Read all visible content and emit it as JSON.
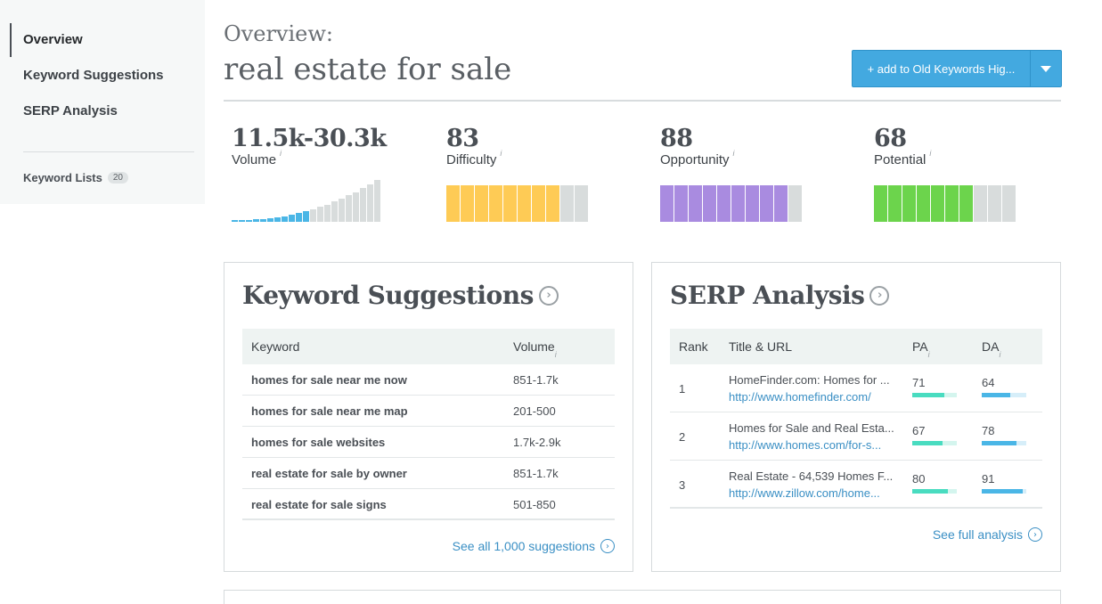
{
  "sidebar": {
    "items": [
      {
        "label": "Overview"
      },
      {
        "label": "Keyword Suggestions"
      },
      {
        "label": "SERP Analysis"
      }
    ],
    "keyword_lists": {
      "label": "Keyword Lists",
      "count": "20"
    }
  },
  "header": {
    "overview_label": "Overview:",
    "keyword": "real estate for sale",
    "add_button": "+ add to Old Keywords Hig..."
  },
  "metrics": [
    {
      "value": "11.5k-30.3k",
      "label": "Volume",
      "info": "i",
      "color_active": "#4ab6e6",
      "color_inactive": "#d8dcdc"
    },
    {
      "value": "83",
      "label": "Difficulty",
      "info": "i",
      "level": 0.83,
      "color_active": "#fecb55",
      "color_inactive": "#d8dcdc"
    },
    {
      "value": "88",
      "label": "Opportunity",
      "info": "i",
      "level": 0.88,
      "color_active": "#a98be0",
      "color_inactive": "#d8dcdc"
    },
    {
      "value": "68",
      "label": "Potential",
      "info": "i",
      "level": 0.68,
      "color_active": "#6cd44c",
      "color_inactive": "#d8dcdc"
    }
  ],
  "keyword_suggestions": {
    "title": "Keyword Suggestions",
    "col_keyword": "Keyword",
    "col_volume": "Volume",
    "info": "i",
    "rows": [
      {
        "keyword": "homes for sale near me now",
        "volume": "851-1.7k"
      },
      {
        "keyword": "homes for sale near me map",
        "volume": "201-500"
      },
      {
        "keyword": "homes for sale websites",
        "volume": "1.7k-2.9k"
      },
      {
        "keyword": "real estate for sale by owner",
        "volume": "851-1.7k"
      },
      {
        "keyword": "real estate for sale signs",
        "volume": "501-850"
      }
    ],
    "see_all": "See all 1,000 suggestions"
  },
  "serp_analysis": {
    "title": "SERP Analysis",
    "col_rank": "Rank",
    "col_title": "Title & URL",
    "col_pa": "PA",
    "col_da": "DA",
    "info": "i",
    "pa_color": "#49dcc0",
    "da_color": "#4ab6e6",
    "rows": [
      {
        "rank": "1",
        "title": "HomeFinder.com: Homes for ...",
        "url": "http://www.homefinder.com/",
        "pa": 71,
        "da": 64
      },
      {
        "rank": "2",
        "title": "Homes for Sale and Real Esta...",
        "url": "http://www.homes.com/for-s...",
        "pa": 67,
        "da": 78
      },
      {
        "rank": "3",
        "title": "Real Estate - 64,539 Homes F...",
        "url": "http://www.zillow.com/home...",
        "pa": 80,
        "da": 91
      }
    ],
    "see_full": "See full analysis"
  }
}
